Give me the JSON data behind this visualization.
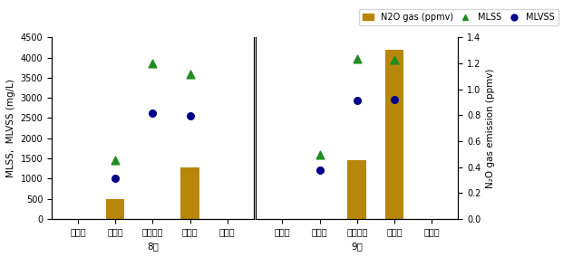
{
  "categories_korean": [
    "유입수",
    "혐기조",
    "무산소조",
    "호기조",
    "유출수"
  ],
  "month1_label": "8月",
  "month2_label": "9月",
  "left_ylabel": "MLSS,  MLVSS (mg/L)",
  "right_ylabel": "N₂O gas emission (ppmv)",
  "legend_bar": "N2O gas (ppmv)",
  "legend_mlss": "MLSS",
  "legend_mlvss": "MLVSS",
  "ylim_left": [
    0,
    4500
  ],
  "ylim_right": [
    0,
    1.4
  ],
  "yticks_left": [
    0,
    500,
    1000,
    1500,
    2000,
    2500,
    3000,
    3500,
    4000,
    4500
  ],
  "yticks_right": [
    0.0,
    0.2,
    0.4,
    0.6,
    0.8,
    1.0,
    1.2,
    1.4
  ],
  "bar_color": "#b8860b",
  "mlss_color": "#228B22",
  "mlvss_color": "#00008B",
  "aug_bar_vals": [
    0,
    480,
    0,
    1280,
    0
  ],
  "aug_mlss_vals": [
    null,
    1450,
    3850,
    3580,
    null
  ],
  "aug_mlvss_vals": [
    null,
    1000,
    2620,
    2560,
    null
  ],
  "sep_bar_vals": [
    0,
    0,
    1450,
    4200,
    0
  ],
  "sep_mlss_vals": [
    null,
    1600,
    3980,
    3940,
    null
  ],
  "sep_mlvss_vals": [
    null,
    1200,
    2930,
    2960,
    null
  ],
  "background_color": "#ffffff",
  "label_fontsize": 7.5,
  "tick_fontsize": 7,
  "legend_fontsize": 7
}
